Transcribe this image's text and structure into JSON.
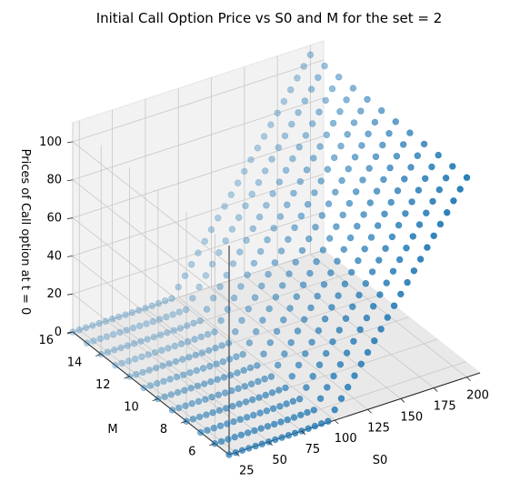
{
  "chart_data": {
    "type": "scatter3d",
    "title": "Initial Call Option Price vs S0 and M for the set = 2",
    "xlabel": "S0",
    "ylabel": "M",
    "zlabel": "Prices of Call option at t = 0",
    "x_ticks": [
      "25",
      "50",
      "75",
      "100",
      "125",
      "150",
      "175",
      "200"
    ],
    "y_ticks": [
      "6",
      "8",
      "10",
      "12",
      "14",
      "16"
    ],
    "z_ticks": [
      "0",
      "20",
      "40",
      "60",
      "80",
      "100"
    ],
    "xlim": [
      20,
      210
    ],
    "ylim": [
      5,
      16
    ],
    "zlim": [
      0,
      110
    ],
    "S0_values": [
      20,
      25,
      30,
      35,
      40,
      45,
      50,
      55,
      60,
      65,
      70,
      75,
      80,
      85,
      90,
      95,
      100,
      105,
      110,
      115,
      120,
      125,
      130,
      135,
      140,
      145,
      150,
      155,
      160,
      165,
      170,
      175,
      180,
      185,
      190,
      195,
      200
    ],
    "M_values": [
      5,
      6,
      7,
      8,
      9,
      10,
      11,
      12,
      13,
      14,
      15,
      16
    ],
    "price_model": "z = max(0, S0 - 95) + 0.6*exp(-((S0-95)/12)^2)",
    "point_color": "#1f77b4",
    "grid": true
  }
}
